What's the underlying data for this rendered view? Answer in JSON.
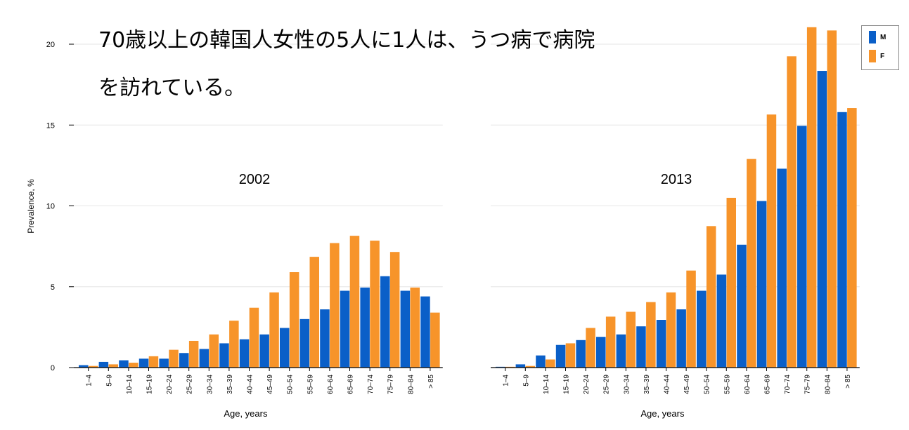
{
  "headline": {
    "line1": "70歳以上の韓国人女性の5人に1人は、うつ病で病院",
    "line2": "を訪れている。"
  },
  "legend": {
    "position": "top-right",
    "entries": [
      {
        "label": "M",
        "color": "#0a5fc8"
      },
      {
        "label": "F",
        "color": "#f7942a"
      }
    ]
  },
  "chart_data": {
    "type": "bar",
    "ylabel": "Prevalence, %",
    "xlabel": "Age, years",
    "ylim": [
      0,
      20
    ],
    "yticks": [
      0,
      5,
      10,
      15,
      20
    ],
    "grid": true,
    "categories": [
      "1–4",
      "5–9",
      "10–14",
      "15–19",
      "20–24",
      "25–29",
      "30–34",
      "35–39",
      "40–44",
      "45–49",
      "50–54",
      "55–59",
      "60–64",
      "65–69",
      "70–74",
      "75–79",
      "80–84",
      "> 85"
    ],
    "panels": [
      {
        "title": "2002",
        "series": [
          {
            "name": "M",
            "color": "#0a5fc8",
            "values": [
              0.15,
              0.35,
              0.45,
              0.55,
              0.55,
              0.9,
              1.15,
              1.5,
              1.75,
              2.05,
              2.45,
              3.0,
              3.6,
              4.75,
              4.95,
              5.65,
              4.75,
              4.4
            ]
          },
          {
            "name": "F",
            "color": "#f7942a",
            "values": [
              0.1,
              0.2,
              0.3,
              0.7,
              1.1,
              1.65,
              2.05,
              2.9,
              3.7,
              4.65,
              5.9,
              6.85,
              7.7,
              8.15,
              7.85,
              7.15,
              4.95,
              3.4
            ]
          }
        ]
      },
      {
        "title": "2013",
        "series": [
          {
            "name": "M",
            "color": "#0a5fc8",
            "values": [
              0.05,
              0.2,
              0.75,
              1.4,
              1.7,
              1.9,
              2.05,
              2.55,
              2.95,
              3.6,
              4.75,
              5.75,
              7.6,
              10.3,
              12.3,
              14.95,
              18.35,
              15.8
            ]
          },
          {
            "name": "F",
            "color": "#f7942a",
            "values": [
              0.05,
              0.1,
              0.5,
              1.5,
              2.45,
              3.15,
              3.45,
              4.05,
              4.65,
              6.0,
              8.75,
              10.5,
              12.9,
              15.65,
              19.25,
              21.05,
              20.85,
              16.05
            ]
          }
        ]
      }
    ]
  }
}
